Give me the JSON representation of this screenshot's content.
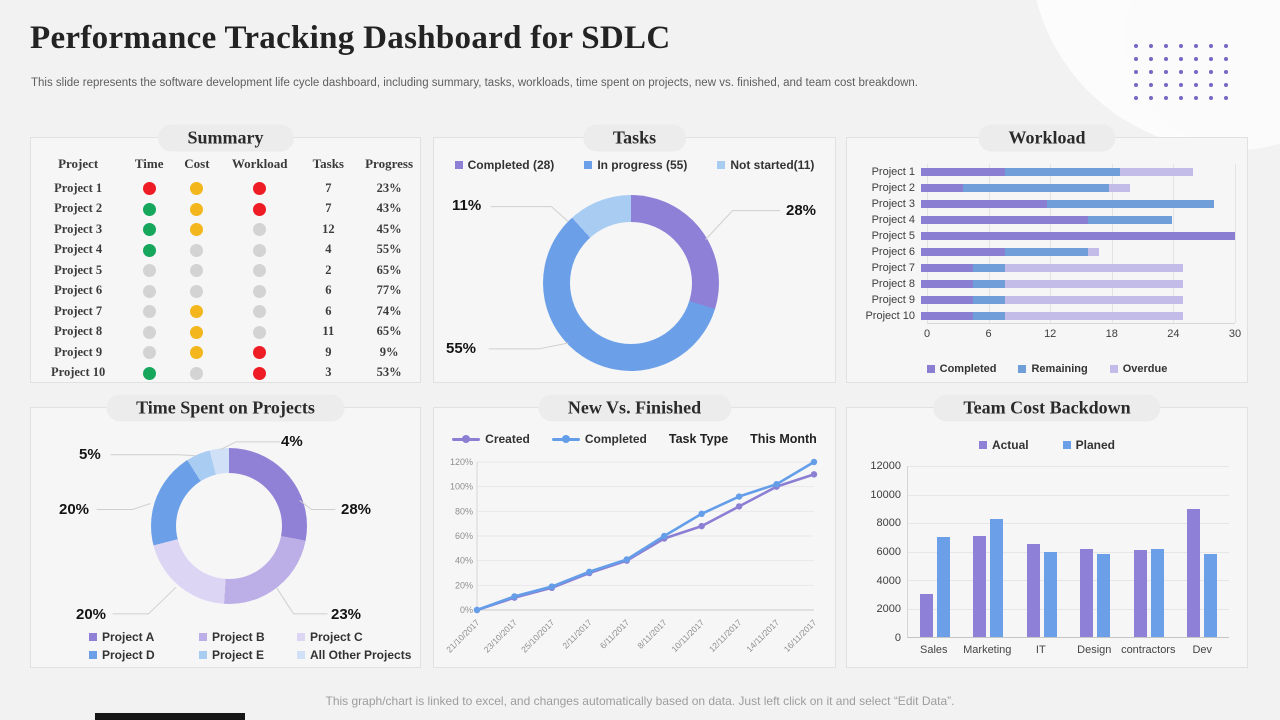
{
  "page": {
    "title": "Performance Tracking Dashboard for SDLC",
    "subtitle": "This slide represents the software development life cycle dashboard, including summary, tasks, workloads, time spent on projects, new vs. finished, and team cost breakdown.",
    "footer": "This graph/chart is linked to excel,  and changes automatically based on data. Just left click on it and select “Edit Data”."
  },
  "colors": {
    "accent_purple": "#8d80d6",
    "accent_blue": "#6ba0e8",
    "accent_light_blue": "#a9ccf2",
    "status_red": "#ee1c25",
    "status_yellow": "#f3b71d",
    "status_green": "#16a75c",
    "status_gray": "#d3d3d3"
  },
  "chart_data": [
    {
      "id": "summary",
      "type": "table",
      "title": "Summary",
      "columns": [
        "Project",
        "Time",
        "Cost",
        "Workload",
        "Tasks",
        "Progress"
      ],
      "rows": [
        {
          "project": "Project 1",
          "time": "red",
          "cost": "yellow",
          "workload": "red",
          "tasks": 7,
          "progress": "23%"
        },
        {
          "project": "Project 2",
          "time": "green",
          "cost": "yellow",
          "workload": "red",
          "tasks": 7,
          "progress": "43%"
        },
        {
          "project": "Project 3",
          "time": "green",
          "cost": "yellow",
          "workload": "gray",
          "tasks": 12,
          "progress": "45%"
        },
        {
          "project": "Project 4",
          "time": "green",
          "cost": "gray",
          "workload": "gray",
          "tasks": 4,
          "progress": "55%"
        },
        {
          "project": "Project 5",
          "time": "gray",
          "cost": "gray",
          "workload": "gray",
          "tasks": 2,
          "progress": "65%"
        },
        {
          "project": "Project 6",
          "time": "gray",
          "cost": "gray",
          "workload": "gray",
          "tasks": 6,
          "progress": "77%"
        },
        {
          "project": "Project 7",
          "time": "gray",
          "cost": "yellow",
          "workload": "gray",
          "tasks": 6,
          "progress": "74%"
        },
        {
          "project": "Project 8",
          "time": "gray",
          "cost": "yellow",
          "workload": "gray",
          "tasks": 11,
          "progress": "65%"
        },
        {
          "project": "Project 9",
          "time": "gray",
          "cost": "yellow",
          "workload": "red",
          "tasks": 9,
          "progress": "9%"
        },
        {
          "project": "Project 10",
          "time": "green",
          "cost": "gray",
          "workload": "red",
          "tasks": 3,
          "progress": "53%"
        }
      ]
    },
    {
      "id": "tasks",
      "type": "pie",
      "title": "Tasks",
      "legend": [
        {
          "label": "Completed (28)",
          "color": "#8d80d6"
        },
        {
          "label": "In progress (55)",
          "color": "#6ba0e8"
        },
        {
          "label": "Not started(11)",
          "color": "#a9ccf2"
        }
      ],
      "slices": [
        {
          "name": "Completed",
          "label": "28%",
          "value": 28,
          "color": "#8d80d6"
        },
        {
          "name": "In progress",
          "label": "55%",
          "value": 55,
          "color": "#6ba0e8"
        },
        {
          "name": "Not started",
          "label": "11%",
          "value": 11,
          "color": "#a9ccf2"
        }
      ]
    },
    {
      "id": "workload",
      "type": "bar",
      "orientation": "horizontal",
      "title": "Workload",
      "categories": [
        "Project 1",
        "Project 2",
        "Project 3",
        "Project 4",
        "Project 5",
        "Project 6",
        "Project 7",
        "Project 8",
        "Project 9",
        "Project 10"
      ],
      "series": [
        {
          "name": "Completed",
          "color": "#8a7ed2",
          "values": [
            8,
            4,
            12,
            16,
            30,
            8,
            5,
            5,
            5,
            5
          ]
        },
        {
          "name": "Remaining",
          "color": "#6f9ed9",
          "values": [
            11,
            14,
            16,
            8,
            0,
            8,
            3,
            3,
            3,
            3
          ]
        },
        {
          "name": "Overdue",
          "color": "#c3bce8",
          "values": [
            7,
            2,
            0,
            0,
            0,
            1,
            17,
            17,
            17,
            17
          ]
        }
      ],
      "xlim": [
        0,
        30
      ],
      "xticks": [
        0,
        6,
        12,
        18,
        24,
        30
      ],
      "legend_position": "bottom"
    },
    {
      "id": "time_spent",
      "type": "pie",
      "title": "Time Spent on Projects",
      "slices": [
        {
          "name": "Project A",
          "label": "28%",
          "value": 28,
          "color": "#9181d6"
        },
        {
          "name": "Project B",
          "label": "23%",
          "value": 23,
          "color": "#bcaee6"
        },
        {
          "name": "Project C",
          "label": "20%",
          "value": 20,
          "color": "#dcd5f3"
        },
        {
          "name": "Project D",
          "label": "20%",
          "value": 20,
          "color": "#6b9fe8"
        },
        {
          "name": "Project E",
          "label": "5%",
          "value": 5,
          "color": "#a9ccf2"
        },
        {
          "name": "All Other Projects",
          "label": "4%",
          "value": 4,
          "color": "#cfe0f7"
        }
      ],
      "legend": [
        {
          "label": "Project A",
          "color": "#9181d6"
        },
        {
          "label": "Project B",
          "color": "#bcaee6"
        },
        {
          "label": "Project C",
          "color": "#dcd5f3"
        },
        {
          "label": "Project D",
          "color": "#6b9fe8"
        },
        {
          "label": "Project E",
          "color": "#a9ccf2"
        },
        {
          "label": "All Other Projects",
          "color": "#cfe0f7"
        }
      ]
    },
    {
      "id": "new_vs_finished",
      "type": "line",
      "title": "New Vs. Finished",
      "extra_headers": [
        "Task Type",
        "This Month"
      ],
      "x": [
        "21/10/2017",
        "23/10/2017",
        "25/10/2017",
        "2/11/2017",
        "6/11/2017",
        "8/11/2017",
        "10/11/2017",
        "12/11/2017",
        "14/11/2017",
        "16/11/2017"
      ],
      "series": [
        {
          "name": "Created",
          "color": "#8b7fd4",
          "values": [
            0,
            10,
            18,
            30,
            40,
            58,
            68,
            84,
            100,
            110
          ]
        },
        {
          "name": "Completed",
          "color": "#649ee8",
          "values": [
            0,
            11,
            19,
            31,
            41,
            60,
            78,
            92,
            102,
            120
          ]
        }
      ],
      "ylim": [
        0,
        120
      ],
      "yticks": [
        "0%",
        "20%",
        "40%",
        "60%",
        "80%",
        "100%",
        "120%"
      ],
      "grid": "horizontal"
    },
    {
      "id": "team_cost",
      "type": "bar",
      "orientation": "vertical",
      "title": "Team Cost Backdown",
      "categories": [
        "Sales",
        "Marketing",
        "IT",
        "Design",
        "contractors",
        "Dev"
      ],
      "series": [
        {
          "name": "Actual",
          "color": "#8d80d6",
          "values": [
            3000,
            7100,
            6500,
            6200,
            6100,
            9000
          ]
        },
        {
          "name": "Planed",
          "color": "#6ba0e8",
          "values": [
            7000,
            8300,
            6000,
            5800,
            6200,
            5800
          ]
        }
      ],
      "ylim": [
        0,
        12000
      ],
      "yticks": [
        0,
        2000,
        4000,
        6000,
        8000,
        10000,
        12000
      ],
      "legend_position": "top"
    }
  ]
}
